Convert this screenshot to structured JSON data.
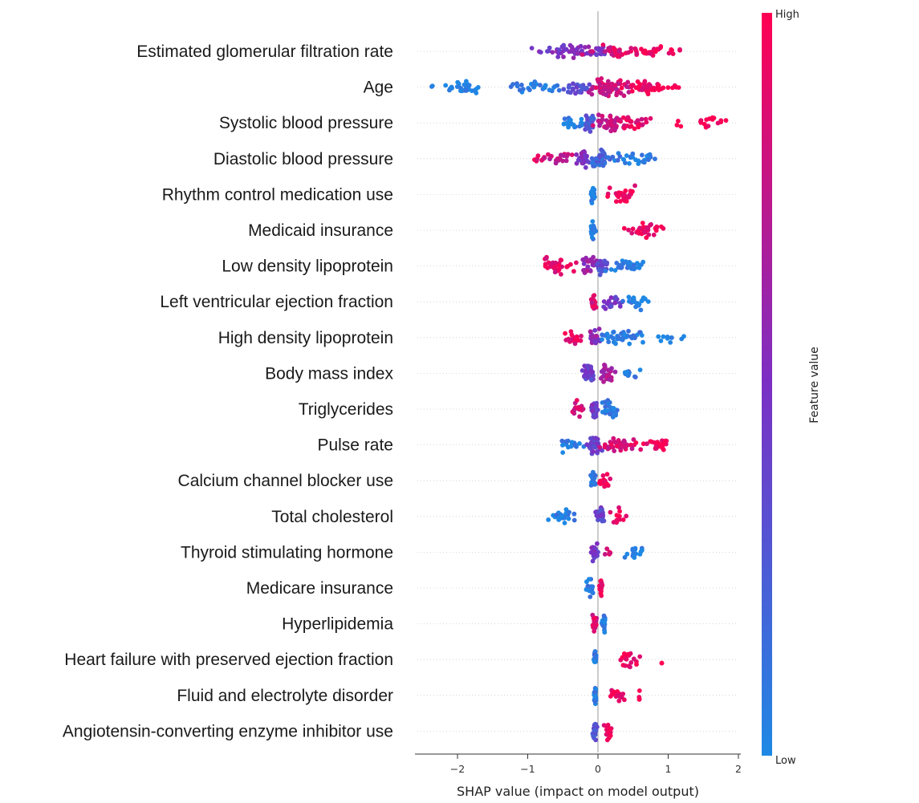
{
  "chart_data": {
    "type": "scatter",
    "subtype": "shap-beeswarm",
    "title": "",
    "xlabel": "SHAP value (impact on model output)",
    "ylabel": "",
    "xlim": [
      -2.6,
      2.0
    ],
    "xticks": [
      -2,
      -1,
      0,
      1,
      2
    ],
    "xtick_labels": [
      "−2",
      "−1",
      "0",
      "1",
      "2"
    ],
    "zero_line": true,
    "row_gridlines": true,
    "colorbar": {
      "title": "Feature value",
      "high_label": "High",
      "low_label": "Low",
      "colors": [
        "#1e88e5",
        "#7b2fc4",
        "#ff0052"
      ],
      "placement": "right"
    },
    "features": [
      {
        "name": "Estimated glomerular filtration rate",
        "clusters": [
          [
            -0.45,
            0.4,
            0.5,
            50
          ],
          [
            0.05,
            0.15,
            0.5,
            15
          ],
          [
            0.3,
            0.3,
            0.85,
            40
          ],
          [
            0.75,
            0.25,
            0.95,
            20
          ],
          [
            1.1,
            0.1,
            1.0,
            6
          ]
        ]
      },
      {
        "name": "Age",
        "clusters": [
          [
            -2.35,
            0.03,
            0.0,
            2
          ],
          [
            -2.1,
            0.06,
            0.0,
            4
          ],
          [
            -1.85,
            0.2,
            0.0,
            25
          ],
          [
            -0.85,
            0.35,
            0.05,
            35
          ],
          [
            -0.25,
            0.2,
            0.35,
            25
          ],
          [
            0.15,
            0.25,
            0.8,
            60
          ],
          [
            0.65,
            0.35,
            0.95,
            40
          ],
          [
            1.1,
            0.1,
            1.0,
            5
          ]
        ]
      },
      {
        "name": "Systolic blood  pressure",
        "clusters": [
          [
            -0.35,
            0.15,
            0.05,
            20
          ],
          [
            -0.12,
            0.06,
            0.25,
            30
          ],
          [
            0.15,
            0.2,
            0.75,
            40
          ],
          [
            0.55,
            0.2,
            0.9,
            25
          ],
          [
            1.15,
            0.04,
            1.0,
            3
          ],
          [
            1.6,
            0.2,
            1.0,
            15
          ]
        ]
      },
      {
        "name": "Diastolic blood pressure",
        "clusters": [
          [
            -0.85,
            0.1,
            0.95,
            8
          ],
          [
            -0.55,
            0.18,
            0.8,
            20
          ],
          [
            -0.22,
            0.08,
            0.5,
            35
          ],
          [
            0.05,
            0.12,
            0.2,
            40
          ],
          [
            0.55,
            0.3,
            0.05,
            30
          ]
        ]
      },
      {
        "name": "Rhythm control medication use",
        "clusters": [
          [
            -0.07,
            0.025,
            0.05,
            25
          ],
          [
            0.35,
            0.18,
            0.95,
            30
          ]
        ]
      },
      {
        "name": "Medicaid insurance",
        "clusters": [
          [
            -0.07,
            0.025,
            0.05,
            25
          ],
          [
            0.65,
            0.22,
            0.95,
            35
          ]
        ]
      },
      {
        "name": "Low density lipoprotein",
        "clusters": [
          [
            -0.55,
            0.18,
            0.9,
            30
          ],
          [
            -0.12,
            0.12,
            0.6,
            25
          ],
          [
            0.05,
            0.08,
            0.35,
            25
          ],
          [
            0.45,
            0.25,
            0.05,
            30
          ]
        ]
      },
      {
        "name": "Left ventricular ejection fraction",
        "clusters": [
          [
            -0.07,
            0.03,
            0.85,
            30
          ],
          [
            0.2,
            0.12,
            0.45,
            20
          ],
          [
            0.55,
            0.18,
            0.05,
            20
          ]
        ]
      },
      {
        "name": "High density lipoprotein",
        "clusters": [
          [
            -0.35,
            0.15,
            0.9,
            20
          ],
          [
            -0.05,
            0.06,
            0.55,
            30
          ],
          [
            0.35,
            0.3,
            0.05,
            40
          ],
          [
            1.05,
            0.18,
            0.0,
            10
          ]
        ]
      },
      {
        "name": "Body mass index",
        "clusters": [
          [
            -0.12,
            0.08,
            0.4,
            40
          ],
          [
            0.12,
            0.12,
            0.7,
            25
          ],
          [
            0.45,
            0.1,
            0.1,
            15
          ]
        ]
      },
      {
        "name": "Triglycerides",
        "clusters": [
          [
            -0.3,
            0.08,
            0.85,
            15
          ],
          [
            -0.05,
            0.05,
            0.45,
            35
          ],
          [
            0.2,
            0.1,
            0.05,
            25
          ]
        ]
      },
      {
        "name": "Pulse rate",
        "clusters": [
          [
            -0.4,
            0.15,
            0.05,
            20
          ],
          [
            -0.05,
            0.08,
            0.4,
            40
          ],
          [
            0.3,
            0.25,
            0.85,
            40
          ],
          [
            0.85,
            0.2,
            0.95,
            25
          ]
        ]
      },
      {
        "name": "Calcium channel blocker use",
        "clusters": [
          [
            -0.07,
            0.03,
            0.05,
            25
          ],
          [
            0.1,
            0.06,
            0.95,
            20
          ]
        ]
      },
      {
        "name": "Total cholesterol",
        "clusters": [
          [
            -0.5,
            0.2,
            0.05,
            25
          ],
          [
            0.02,
            0.05,
            0.4,
            25
          ],
          [
            0.28,
            0.08,
            0.95,
            12
          ]
        ]
      },
      {
        "name": "Thyroid stimulating hormone",
        "clusters": [
          [
            -0.05,
            0.04,
            0.45,
            30
          ],
          [
            0.15,
            0.04,
            0.9,
            6
          ],
          [
            0.5,
            0.12,
            0.05,
            15
          ]
        ]
      },
      {
        "name": "Medicare insurance",
        "clusters": [
          [
            -0.12,
            0.04,
            0.05,
            18
          ],
          [
            0.04,
            0.02,
            0.95,
            18
          ]
        ]
      },
      {
        "name": "Hyperlipidemia",
        "clusters": [
          [
            -0.05,
            0.025,
            0.85,
            25
          ],
          [
            0.08,
            0.025,
            0.05,
            18
          ]
        ]
      },
      {
        "name": "Heart failure with preserved ejection fraction",
        "clusters": [
          [
            -0.04,
            0.015,
            0.05,
            25
          ],
          [
            0.45,
            0.12,
            0.95,
            18
          ],
          [
            0.9,
            0.02,
            1.0,
            2
          ]
        ]
      },
      {
        "name": "Fluid and electrolyte disorder",
        "clusters": [
          [
            -0.04,
            0.015,
            0.05,
            25
          ],
          [
            0.3,
            0.1,
            0.95,
            18
          ],
          [
            0.6,
            0.03,
            1.0,
            4
          ]
        ]
      },
      {
        "name": "Angiotensin-converting enzyme inhibitor use",
        "clusters": [
          [
            -0.05,
            0.03,
            0.3,
            30
          ],
          [
            0.15,
            0.07,
            0.95,
            20
          ]
        ]
      }
    ]
  }
}
